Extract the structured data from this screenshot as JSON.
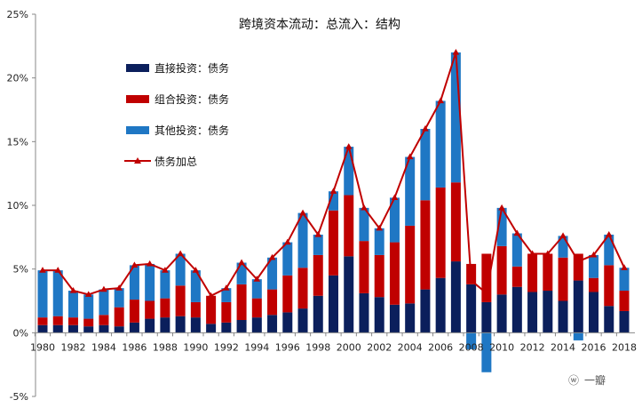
{
  "chart_data": {
    "type": "bar",
    "stacked": true,
    "title": "跨境资本流动：总流入：结构",
    "xlabel": "",
    "ylabel": "",
    "ylim": [
      -5,
      25
    ],
    "y_ticks": [
      "-5%",
      "0%",
      "5%",
      "10%",
      "15%",
      "20%",
      "25%"
    ],
    "y_tick_values": [
      -5,
      0,
      5,
      10,
      15,
      20,
      25
    ],
    "x_tick_labels": [
      "1980",
      "1982",
      "1984",
      "1986",
      "1988",
      "1990",
      "1992",
      "1994",
      "1996",
      "1998",
      "2000",
      "2002",
      "2004",
      "2006",
      "2008",
      "2010",
      "2012",
      "2014",
      "2016",
      "2018"
    ],
    "categories": [
      1980,
      1981,
      1982,
      1983,
      1984,
      1985,
      1986,
      1987,
      1988,
      1989,
      1990,
      1991,
      1992,
      1993,
      1994,
      1995,
      1996,
      1997,
      1998,
      1999,
      2000,
      2001,
      2002,
      2003,
      2004,
      2005,
      2006,
      2007,
      2008,
      2009,
      2010,
      2011,
      2012,
      2013,
      2014,
      2015,
      2016,
      2017,
      2018
    ],
    "series": [
      {
        "name": "直接投资：债务",
        "color": "#0b1f5c",
        "values": [
          0.6,
          0.6,
          0.6,
          0.5,
          0.6,
          0.5,
          0.8,
          1.1,
          1.2,
          1.3,
          1.2,
          0.7,
          0.8,
          1.0,
          1.2,
          1.4,
          1.6,
          1.9,
          2.9,
          4.5,
          6.0,
          3.1,
          2.8,
          2.2,
          2.3,
          3.4,
          4.3,
          5.6,
          3.8,
          2.4,
          3.0,
          3.6,
          3.2,
          3.3,
          2.5,
          4.1,
          3.2,
          2.1,
          1.7
        ]
      },
      {
        "name": "组合投资：债务",
        "color": "#c00000",
        "values": [
          0.6,
          0.7,
          0.6,
          0.6,
          0.8,
          1.5,
          1.8,
          1.4,
          1.5,
          2.4,
          1.2,
          2.2,
          1.6,
          2.8,
          1.5,
          2.0,
          2.9,
          3.2,
          3.2,
          5.1,
          4.8,
          4.1,
          3.3,
          4.9,
          6.1,
          7.0,
          7.1,
          6.2,
          1.6,
          3.8,
          3.8,
          1.6,
          3.0,
          2.9,
          3.4,
          2.1,
          1.1,
          3.2,
          1.6
        ]
      },
      {
        "name": "其他投资：债务",
        "color": "#1f77c4",
        "values": [
          3.7,
          3.6,
          2.1,
          1.9,
          2.0,
          1.5,
          2.7,
          2.9,
          2.2,
          2.5,
          2.5,
          0.0,
          1.1,
          1.7,
          1.5,
          2.5,
          2.6,
          4.3,
          1.6,
          1.5,
          3.8,
          2.6,
          2.1,
          3.5,
          5.4,
          5.6,
          6.8,
          10.2,
          -1.3,
          -3.1,
          3.0,
          2.6,
          0.0,
          0.0,
          1.7,
          -0.6,
          1.8,
          2.4,
          1.8
        ]
      },
      {
        "name": "债务加总",
        "color": "#c00000",
        "type": "line",
        "marker": "triangle",
        "values": [
          4.9,
          4.9,
          3.3,
          3.0,
          3.4,
          3.5,
          5.3,
          5.4,
          4.9,
          6.2,
          4.9,
          2.9,
          3.5,
          5.5,
          4.2,
          5.9,
          7.1,
          9.4,
          7.7,
          11.1,
          14.6,
          9.8,
          8.2,
          10.6,
          13.8,
          16.0,
          18.2,
          22.0,
          4.1,
          3.1,
          9.8,
          7.8,
          6.2,
          6.2,
          7.6,
          5.6,
          6.1,
          7.7,
          5.1
        ]
      }
    ],
    "legend_position": "top-left",
    "grid": false
  },
  "watermark": {
    "logo_glyph": "ⓦ",
    "text": "一瓣"
  }
}
